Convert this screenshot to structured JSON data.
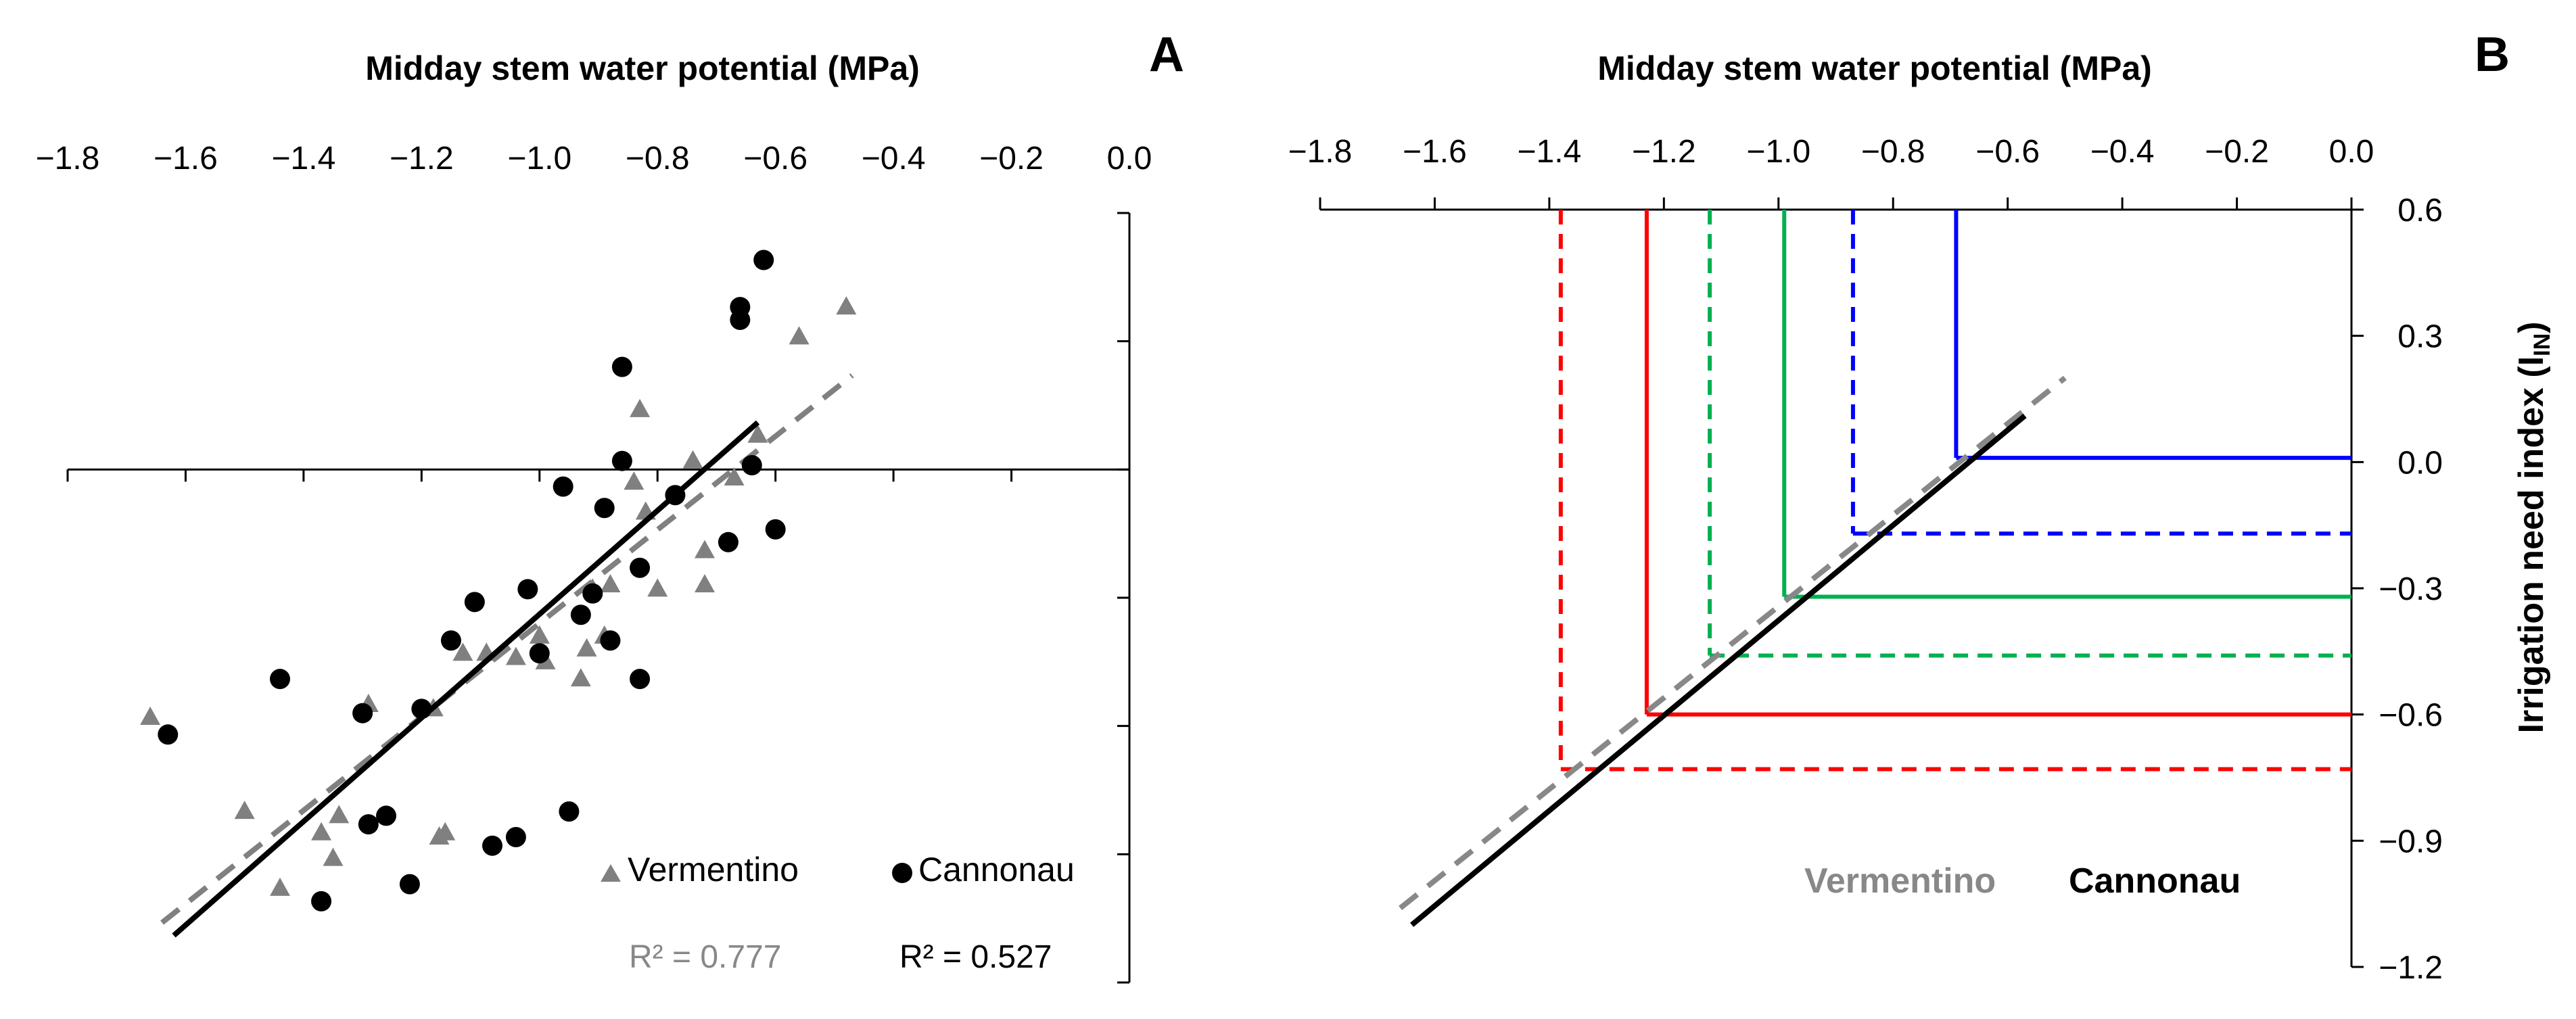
{
  "chart_data": [
    {
      "panel": "A",
      "type": "scatter",
      "title": "Midday stem water potential (MPa)",
      "xlabel": "Midday stem water potential (MPa)",
      "ylabel": "",
      "xlim": [
        -1.8,
        0.0
      ],
      "ylim": [
        -1.2,
        0.6
      ],
      "x_ticks": [
        "−1.8",
        "−1.6",
        "−1.4",
        "−1.2",
        "−1.0",
        "−0.8",
        "−0.6",
        "−0.4",
        "−0.2",
        "0.0"
      ],
      "x_tick_values": [
        -1.8,
        -1.6,
        -1.4,
        -1.2,
        -1.0,
        -0.8,
        -0.6,
        -0.4,
        -0.2,
        0.0
      ],
      "y_tick_values": [
        -1.2,
        -0.9,
        -0.6,
        -0.3,
        0.0,
        0.3,
        0.6
      ],
      "series": [
        {
          "name": "Vermentino",
          "marker": "triangle",
          "color": "#808080",
          "points": [
            [
              -1.66,
              -0.58
            ],
            [
              -1.5,
              -0.8
            ],
            [
              -1.44,
              -0.98
            ],
            [
              -1.37,
              -0.85
            ],
            [
              -1.35,
              -0.91
            ],
            [
              -1.34,
              -0.81
            ],
            [
              -1.29,
              -0.55
            ],
            [
              -1.18,
              -0.56
            ],
            [
              -1.17,
              -0.86
            ],
            [
              -1.16,
              -0.85
            ],
            [
              -1.13,
              -0.43
            ],
            [
              -1.09,
              -0.43
            ],
            [
              -1.04,
              -0.44
            ],
            [
              -1.0,
              -0.39
            ],
            [
              -0.99,
              -0.45
            ],
            [
              -0.93,
              -0.49
            ],
            [
              -0.92,
              -0.42
            ],
            [
              -0.91,
              -0.28
            ],
            [
              -0.89,
              -0.39
            ],
            [
              -0.88,
              -0.27
            ],
            [
              -0.84,
              -0.03
            ],
            [
              -0.83,
              0.14
            ],
            [
              -0.82,
              -0.1
            ],
            [
              -0.8,
              -0.28
            ],
            [
              -0.74,
              0.02
            ],
            [
              -0.72,
              -0.19
            ],
            [
              -0.72,
              -0.27
            ],
            [
              -0.67,
              -0.02
            ],
            [
              -0.63,
              0.08
            ],
            [
              -0.56,
              0.31
            ],
            [
              -0.48,
              0.38
            ]
          ],
          "r2_label": "R² = 0.777",
          "fit": {
            "x": [
              -1.64,
              -0.47
            ],
            "y": [
              -1.06,
              0.22
            ]
          }
        },
        {
          "name": "Cannonau",
          "marker": "circle",
          "color": "#000000",
          "points": [
            [
              -1.63,
              -0.62
            ],
            [
              -1.44,
              -0.49
            ],
            [
              -1.37,
              -1.01
            ],
            [
              -1.3,
              -0.57
            ],
            [
              -1.29,
              -0.83
            ],
            [
              -1.26,
              -0.81
            ],
            [
              -1.22,
              -0.97
            ],
            [
              -1.2,
              -0.56
            ],
            [
              -1.15,
              -0.4
            ],
            [
              -1.11,
              -0.31
            ],
            [
              -1.08,
              -0.88
            ],
            [
              -1.04,
              -0.86
            ],
            [
              -1.02,
              -0.28
            ],
            [
              -1.0,
              -0.43
            ],
            [
              -0.96,
              -0.04
            ],
            [
              -0.95,
              -0.8
            ],
            [
              -0.93,
              -0.34
            ],
            [
              -0.91,
              -0.29
            ],
            [
              -0.89,
              -0.09
            ],
            [
              -0.88,
              -0.4
            ],
            [
              -0.86,
              0.02
            ],
            [
              -0.86,
              0.24
            ],
            [
              -0.83,
              -0.49
            ],
            [
              -0.83,
              -0.23
            ],
            [
              -0.77,
              -0.06
            ],
            [
              -0.68,
              -0.17
            ],
            [
              -0.66,
              0.35
            ],
            [
              -0.66,
              0.38
            ],
            [
              -0.64,
              0.01
            ],
            [
              -0.62,
              0.49
            ],
            [
              -0.6,
              -0.14
            ]
          ],
          "r2_label": "R² = 0.527",
          "fit": {
            "x": [
              -1.62,
              -0.63
            ],
            "y": [
              -1.09,
              0.11
            ]
          }
        }
      ]
    },
    {
      "panel": "B",
      "type": "line",
      "title": "Midday stem water potential (MPa)",
      "xlabel": "Midday stem water potential (MPa)",
      "ylabel_main": "Irrigation need index (I",
      "ylabel_sub": "IN",
      "ylabel_end": ")",
      "xlim": [
        -1.8,
        0.0
      ],
      "ylim": [
        -1.2,
        0.6
      ],
      "x_ticks": [
        "−1.8",
        "−1.6",
        "−1.4",
        "−1.2",
        "−1.0",
        "−0.8",
        "−0.6",
        "−0.4",
        "−0.2",
        "0.0"
      ],
      "x_tick_values": [
        -1.8,
        -1.6,
        -1.4,
        -1.2,
        -1.0,
        -0.8,
        -0.6,
        -0.4,
        -0.2,
        0.0
      ],
      "y_ticks": [
        "0.6",
        "0.3",
        "0.0",
        "−0.3",
        "−0.6",
        "−0.9",
        "−1.2"
      ],
      "y_tick_values": [
        0.6,
        0.3,
        0.0,
        -0.3,
        -0.6,
        -0.9,
        -1.2
      ],
      "legend": [
        {
          "label": "Vermentino",
          "color": "#888888"
        },
        {
          "label": "Cannonau",
          "color": "#000000"
        }
      ],
      "fits": [
        {
          "name": "Vermentino",
          "color": "#888888",
          "dashed": true,
          "x": [
            -1.66,
            -0.5
          ],
          "y": [
            -1.06,
            0.2
          ]
        },
        {
          "name": "Cannonau",
          "color": "#000000",
          "dashed": false,
          "x": [
            -1.64,
            -0.57
          ],
          "y": [
            -1.1,
            0.11
          ]
        }
      ],
      "thresholds": [
        {
          "cultivar": "Vermentino",
          "color": "#ff0000",
          "dashed": true,
          "x": -1.38,
          "y": -0.73
        },
        {
          "cultivar": "Cannonau",
          "color": "#ff0000",
          "dashed": false,
          "x": -1.23,
          "y": -0.6
        },
        {
          "cultivar": "Vermentino",
          "color": "#00b050",
          "dashed": true,
          "x": -1.12,
          "y": -0.46
        },
        {
          "cultivar": "Cannonau",
          "color": "#00b050",
          "dashed": false,
          "x": -0.99,
          "y": -0.32
        },
        {
          "cultivar": "Vermentino",
          "color": "#0000ff",
          "dashed": true,
          "x": -0.87,
          "y": -0.17
        },
        {
          "cultivar": "Cannonau",
          "color": "#0000ff",
          "dashed": false,
          "x": -0.69,
          "y": 0.01
        }
      ]
    }
  ]
}
